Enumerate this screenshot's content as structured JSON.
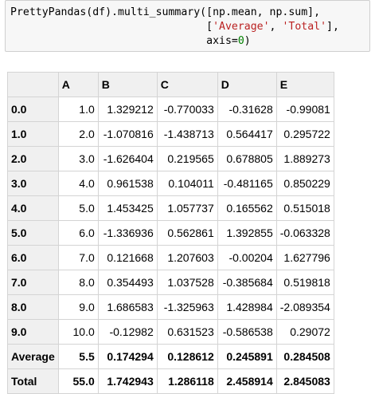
{
  "code": {
    "line1": "PrettyPandas(df).multi_summary([np.mean, np.sum],",
    "line2_pre": "                               [",
    "line2_s1": "'Average'",
    "line2_mid": ", ",
    "line2_s2": "'Total'",
    "line2_post": "],",
    "line3_pre": "                               axis=",
    "line3_num": "0",
    "line3_post": ")"
  },
  "table": {
    "columns": [
      "",
      "A",
      "B",
      "C",
      "D",
      "E"
    ],
    "rows": [
      {
        "index": "0.0",
        "cells": [
          "1.0",
          "1.329212",
          "-0.770033",
          "-0.31628",
          "-0.99081"
        ]
      },
      {
        "index": "1.0",
        "cells": [
          "2.0",
          "-1.070816",
          "-1.438713",
          "0.564417",
          "0.295722"
        ]
      },
      {
        "index": "2.0",
        "cells": [
          "3.0",
          "-1.626404",
          "0.219565",
          "0.678805",
          "1.889273"
        ]
      },
      {
        "index": "3.0",
        "cells": [
          "4.0",
          "0.961538",
          "0.104011",
          "-0.481165",
          "0.850229"
        ]
      },
      {
        "index": "4.0",
        "cells": [
          "5.0",
          "1.453425",
          "1.057737",
          "0.165562",
          "0.515018"
        ]
      },
      {
        "index": "5.0",
        "cells": [
          "6.0",
          "-1.336936",
          "0.562861",
          "1.392855",
          "-0.063328"
        ]
      },
      {
        "index": "6.0",
        "cells": [
          "7.0",
          "0.121668",
          "1.207603",
          "-0.00204",
          "1.627796"
        ]
      },
      {
        "index": "7.0",
        "cells": [
          "8.0",
          "0.354493",
          "1.037528",
          "-0.385684",
          "0.519818"
        ]
      },
      {
        "index": "8.0",
        "cells": [
          "9.0",
          "1.686583",
          "-1.325963",
          "1.428984",
          "-2.089354"
        ]
      },
      {
        "index": "9.0",
        "cells": [
          "10.0",
          "-0.12982",
          "0.631523",
          "-0.586538",
          "0.29072"
        ]
      }
    ],
    "summary": [
      {
        "index": "Average",
        "cells": [
          "5.5",
          "0.174294",
          "0.128612",
          "0.245891",
          "0.284508"
        ]
      },
      {
        "index": "Total",
        "cells": [
          "55.0",
          "1.742943",
          "1.286118",
          "2.458914",
          "2.845083"
        ]
      }
    ]
  }
}
